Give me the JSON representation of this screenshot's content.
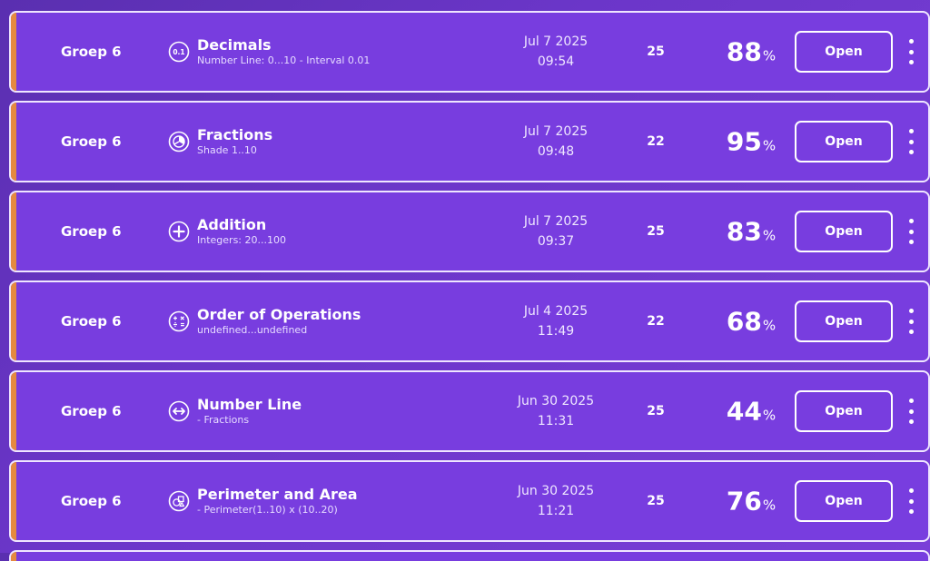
{
  "assignments": [
    {
      "group": "Groep 6",
      "icon": "decimal-icon",
      "title": "Decimals",
      "subtitle": "Number Line: 0...10 - Interval 0.01",
      "date": "Jul 7 2025",
      "time": "09:54",
      "count": "25",
      "score": "88",
      "percent": "%",
      "button": "Open"
    },
    {
      "group": "Groep 6",
      "icon": "fraction-pie-icon",
      "title": "Fractions",
      "subtitle": "Shade 1..10",
      "date": "Jul 7 2025",
      "time": "09:48",
      "count": "22",
      "score": "95",
      "percent": "%",
      "button": "Open"
    },
    {
      "group": "Groep 6",
      "icon": "plus-circle-icon",
      "title": "Addition",
      "subtitle": "Integers: 20...100",
      "date": "Jul 7 2025",
      "time": "09:37",
      "count": "25",
      "score": "83",
      "percent": "%",
      "button": "Open"
    },
    {
      "group": "Groep 6",
      "icon": "operations-icon",
      "title": "Order of Operations",
      "subtitle": "undefined...undefined",
      "date": "Jul 4 2025",
      "time": "11:49",
      "count": "22",
      "score": "68",
      "percent": "%",
      "button": "Open"
    },
    {
      "group": "Groep 6",
      "icon": "double-arrow-icon",
      "title": "Number Line",
      "subtitle": "- Fractions",
      "date": "Jun 30 2025",
      "time": "11:31",
      "count": "25",
      "score": "44",
      "percent": "%",
      "button": "Open"
    },
    {
      "group": "Groep 6",
      "icon": "shapes-icon",
      "title": "Perimeter and Area",
      "subtitle": "- Perimeter(1..10) x (10..20)",
      "date": "Jun 30 2025",
      "time": "11:21",
      "count": "25",
      "score": "76",
      "percent": "%",
      "button": "Open"
    }
  ],
  "colors": {
    "background": "#6b36c9",
    "row": "#783ddf",
    "row_border": "#efe6ff",
    "accent": "#e58a3f",
    "text": "#ffffff"
  }
}
